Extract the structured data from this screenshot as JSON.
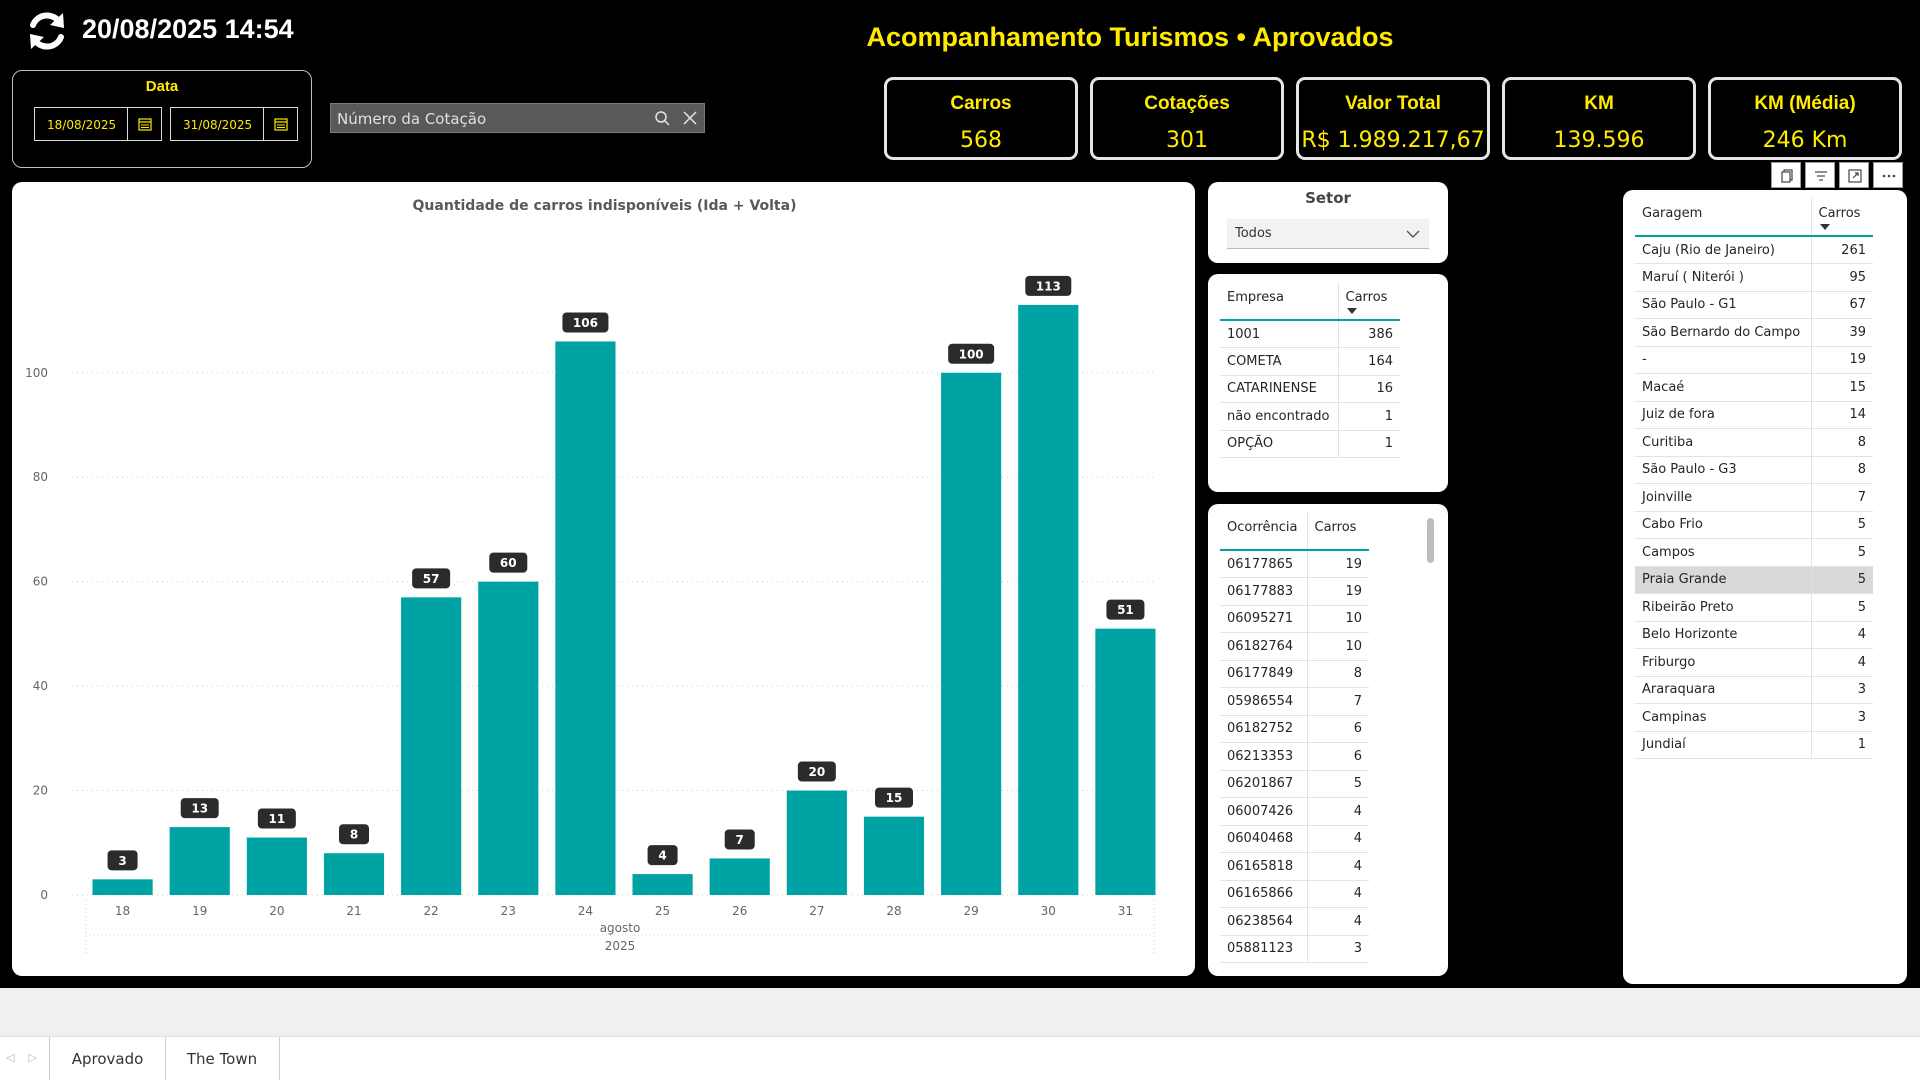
{
  "header": {
    "datetime": "20/08/2025 14:54",
    "title": "Acompanhamento Turismos • Aprovados",
    "refresh_icon": "refresh-icon"
  },
  "date_filter": {
    "label": "Data",
    "start": "18/08/2025",
    "end": "31/08/2025",
    "icon": "calendar-icon"
  },
  "search": {
    "placeholder": "Número da Cotação",
    "search_icon": "search-icon",
    "clear_icon": "close-icon"
  },
  "kpis": [
    {
      "label": "Carros",
      "value": "568"
    },
    {
      "label": "Cotações",
      "value": "301"
    },
    {
      "label": "Valor Total",
      "value": "R$ 1.989.217,67"
    },
    {
      "label": "KM",
      "value": "139.596"
    },
    {
      "label": "KM (Média)",
      "value": "246 Km"
    }
  ],
  "colors": {
    "accent": "#ffea00",
    "bar": "#00a3a3",
    "background": "#000000",
    "data_label_bg": "#2b2b2b"
  },
  "chart_data": {
    "type": "bar",
    "title": "Quantidade de carros indisponíveis (Ida + Volta)",
    "categories": [
      "18",
      "19",
      "20",
      "21",
      "22",
      "23",
      "24",
      "25",
      "26",
      "27",
      "28",
      "29",
      "30",
      "31"
    ],
    "values": [
      3,
      13,
      11,
      8,
      57,
      60,
      106,
      4,
      7,
      20,
      15,
      100,
      113,
      51
    ],
    "x_hierarchy": [
      "agosto",
      "2025"
    ],
    "yticks": [
      0,
      20,
      40,
      60,
      80,
      100
    ],
    "ylim": [
      0,
      126
    ],
    "grid": true,
    "data_labels": true
  },
  "setor": {
    "title": "Setor",
    "selected": "Todos"
  },
  "empresa_table": {
    "headers": [
      "Empresa",
      "Carros"
    ],
    "rows": [
      [
        "1001",
        "386"
      ],
      [
        "COMETA",
        "164"
      ],
      [
        "CATARINENSE",
        "16"
      ],
      [
        "não encontrado",
        "1"
      ],
      [
        "OPÇÃO",
        "1"
      ]
    ]
  },
  "ocorrencia_table": {
    "headers": [
      "Ocorrência",
      "Carros"
    ],
    "rows": [
      [
        "06177865",
        "19"
      ],
      [
        "06177883",
        "19"
      ],
      [
        "06095271",
        "10"
      ],
      [
        "06182764",
        "10"
      ],
      [
        "06177849",
        "8"
      ],
      [
        "05986554",
        "7"
      ],
      [
        "06182752",
        "6"
      ],
      [
        "06213353",
        "6"
      ],
      [
        "06201867",
        "5"
      ],
      [
        "06007426",
        "4"
      ],
      [
        "06040468",
        "4"
      ],
      [
        "06165818",
        "4"
      ],
      [
        "06165866",
        "4"
      ],
      [
        "06238564",
        "4"
      ],
      [
        "05881123",
        "3"
      ]
    ]
  },
  "garagem_table": {
    "headers": [
      "Garagem",
      "Carros"
    ],
    "selected_row": 12,
    "rows": [
      [
        "Caju (Rio de Janeiro)",
        "261"
      ],
      [
        "Maruí ( Niterói )",
        "95"
      ],
      [
        "São Paulo - G1",
        "67"
      ],
      [
        "São Bernardo do Campo",
        "39"
      ],
      [
        "-",
        "19"
      ],
      [
        "Macaé",
        "15"
      ],
      [
        "Juiz de fora",
        "14"
      ],
      [
        "Curitiba",
        "8"
      ],
      [
        "São Paulo - G3",
        "8"
      ],
      [
        "Joinville",
        "7"
      ],
      [
        "Cabo Frio",
        "5"
      ],
      [
        "Campos",
        "5"
      ],
      [
        "Praia Grande",
        "5"
      ],
      [
        "Ribeirão Preto",
        "5"
      ],
      [
        "Belo Horizonte",
        "4"
      ],
      [
        "Friburgo",
        "4"
      ],
      [
        "Araraquara",
        "3"
      ],
      [
        "Campinas",
        "3"
      ],
      [
        "Jundiaí",
        "1"
      ]
    ]
  },
  "visual_header_icons": [
    "copy-icon",
    "filter-icon",
    "focus-mode-icon",
    "more-options-icon"
  ],
  "tabs": [
    "Aprovado",
    "The Town"
  ]
}
